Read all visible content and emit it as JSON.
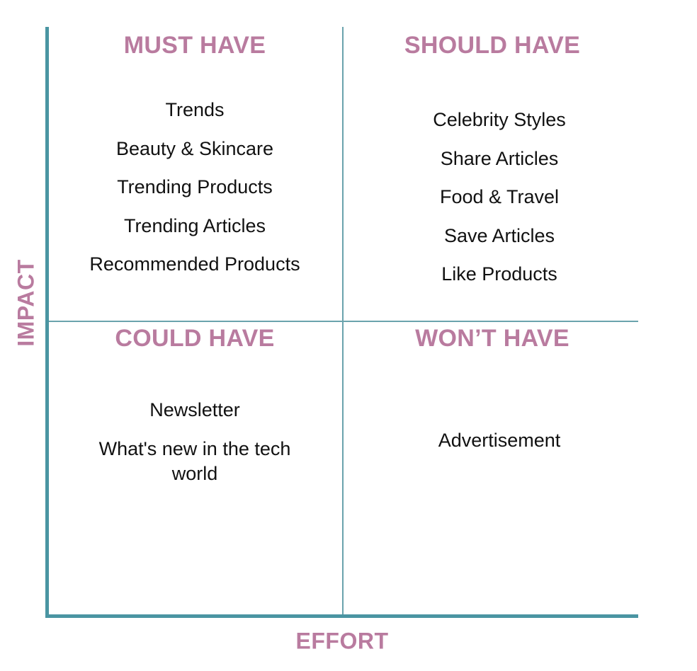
{
  "axes": {
    "y_label": "IMPACT",
    "x_label": "EFFORT"
  },
  "quadrants": {
    "must_have": {
      "title": "MUST HAVE",
      "items": [
        "Trends",
        "Beauty & Skincare",
        "Trending Products",
        "Trending Articles",
        "Recommended Products"
      ]
    },
    "should_have": {
      "title": "SHOULD HAVE",
      "items": [
        "Celebrity Styles",
        "Share Articles",
        "Food & Travel",
        "Save Articles",
        "Like Products"
      ]
    },
    "could_have": {
      "title": "COULD HAVE",
      "items": [
        "Newsletter",
        "What's new in the tech world"
      ]
    },
    "wont_have": {
      "title": "WON’T HAVE",
      "items": [
        "Advertisement"
      ]
    }
  },
  "colors": {
    "heading": "#b97b9f",
    "axis": "#4a95a2",
    "divider": "#6aa3ad",
    "text": "#111111"
  }
}
